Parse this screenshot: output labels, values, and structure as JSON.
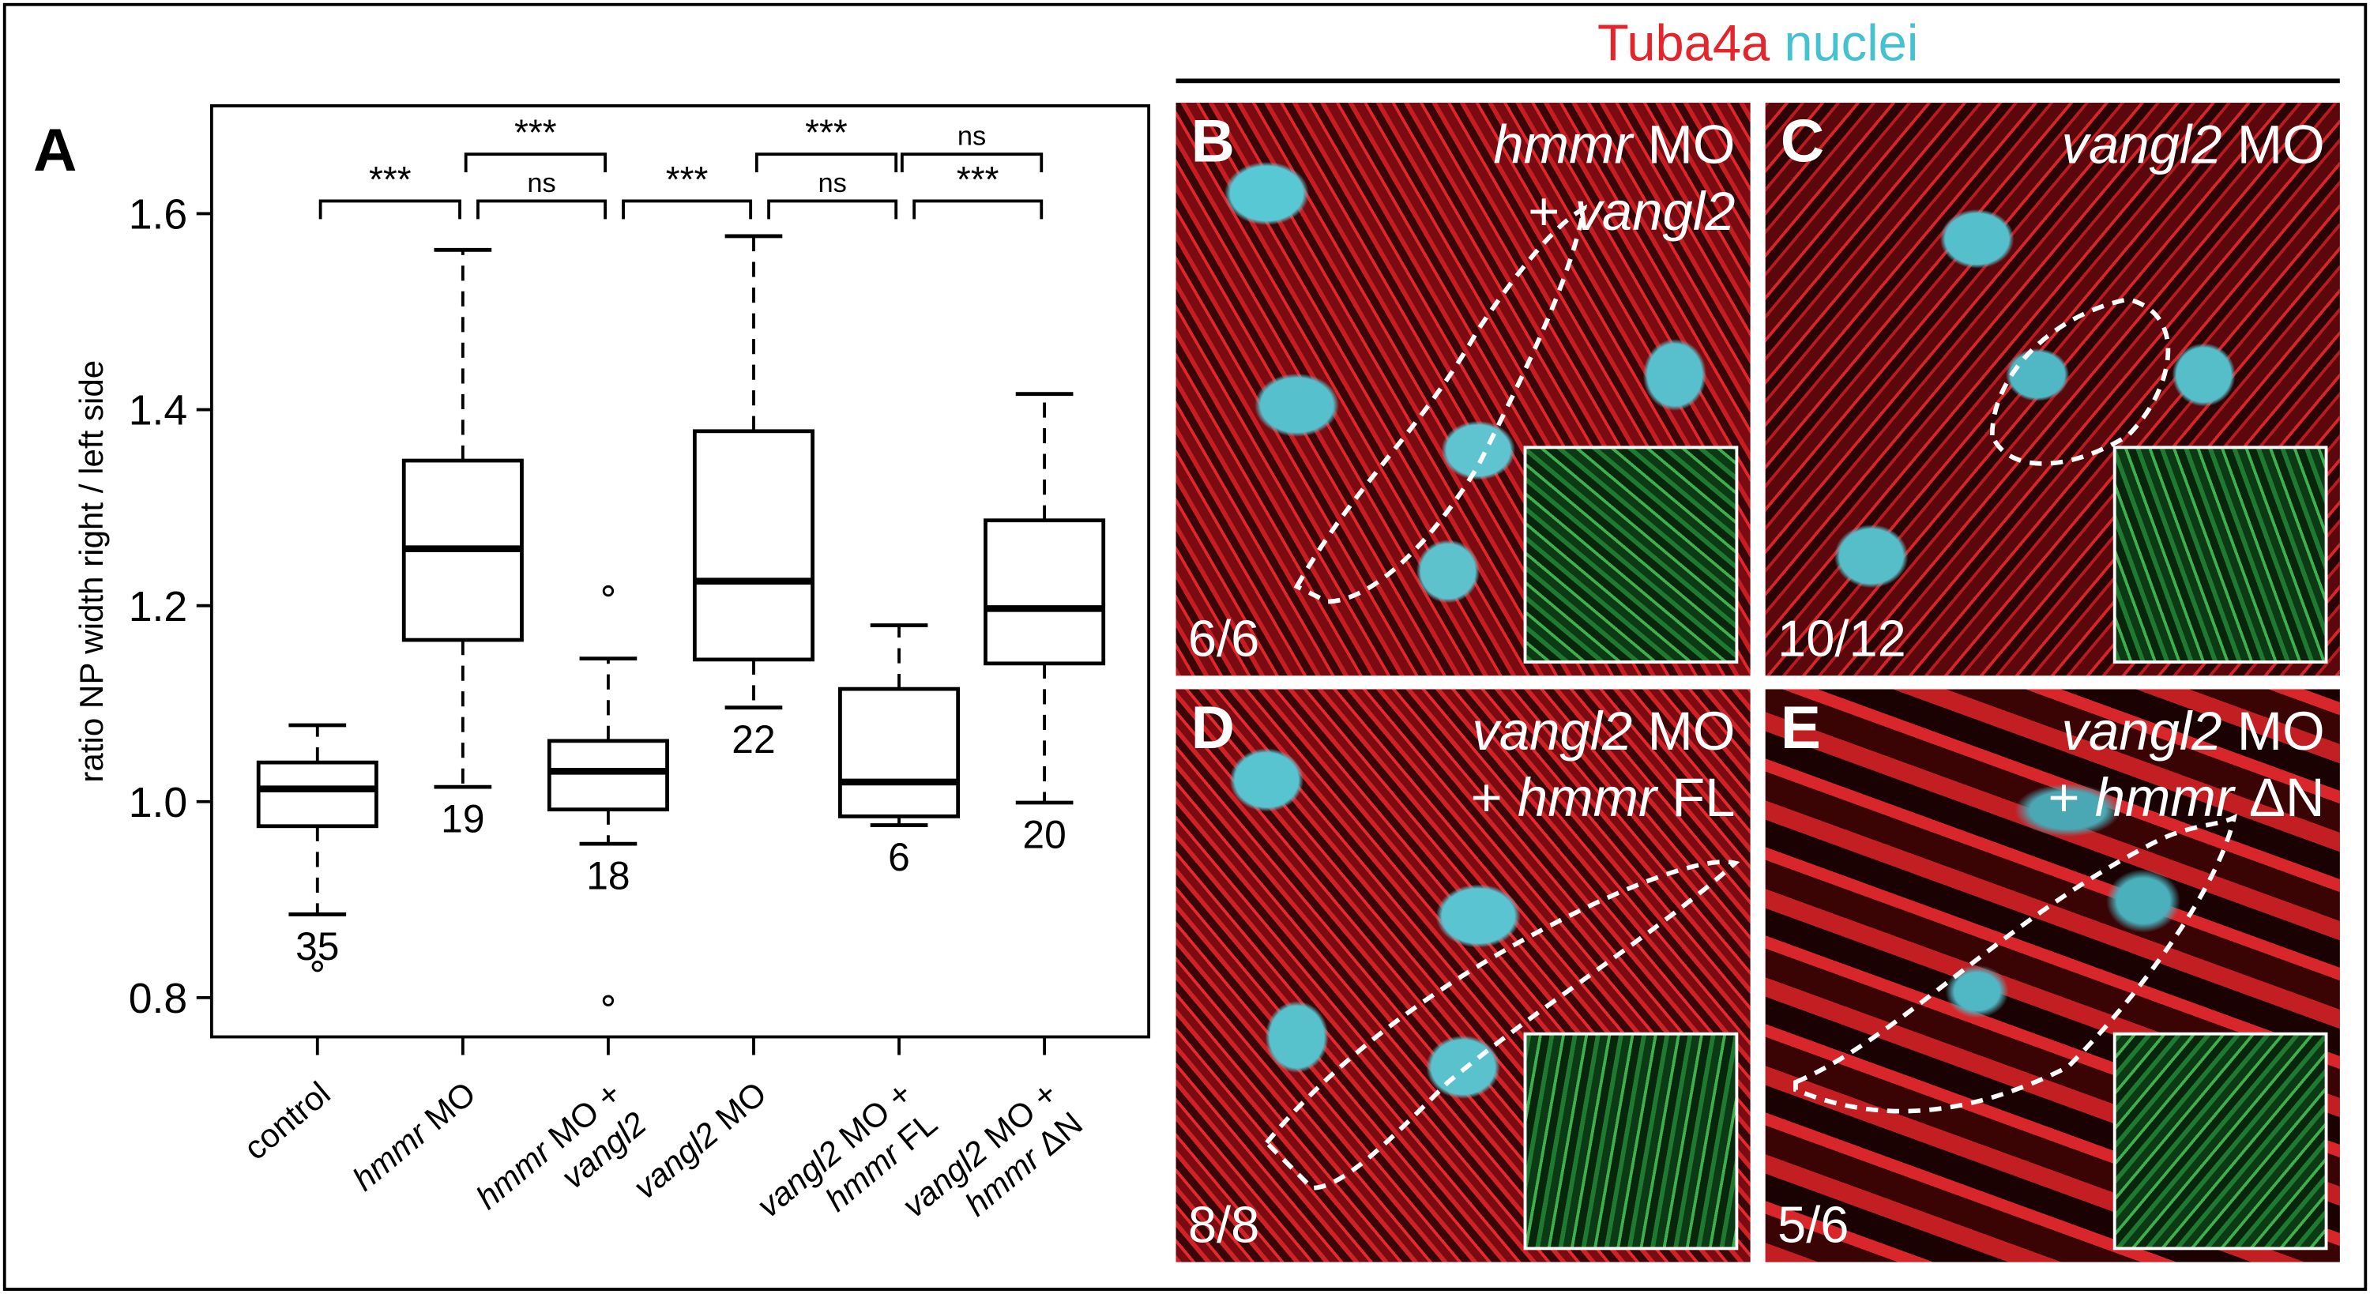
{
  "figure": {
    "panel_a_letter": "A",
    "header": {
      "tuba4a": "Tuba4a",
      "nuclei": "nuclei",
      "tuba4a_color": "#e3262b",
      "nuclei_color": "#45c1cf"
    }
  },
  "chart_data": {
    "type": "box",
    "ylabel": "ratio NP width right / left side",
    "ylim": [
      0.76,
      1.71
    ],
    "yticks": [
      0.8,
      1.0,
      1.2,
      1.4,
      1.6
    ],
    "ytick_labels": [
      "0.8",
      "1.0",
      "1.2",
      "1.4",
      "1.6"
    ],
    "grid": false,
    "categories": [
      {
        "lines": [
          [
            {
              "t": "control",
              "i": false
            }
          ]
        ]
      },
      {
        "lines": [
          [
            {
              "t": "hmmr",
              "i": true
            },
            {
              "t": " MO",
              "i": false
            }
          ]
        ]
      },
      {
        "lines": [
          [
            {
              "t": "hmmr",
              "i": true
            },
            {
              "t": " MO +",
              "i": false
            }
          ],
          [
            {
              "t": "vangl2",
              "i": true
            }
          ]
        ]
      },
      {
        "lines": [
          [
            {
              "t": "vangl2",
              "i": true
            },
            {
              "t": " MO",
              "i": false
            }
          ]
        ]
      },
      {
        "lines": [
          [
            {
              "t": "vangl2",
              "i": true
            },
            {
              "t": " MO +",
              "i": false
            }
          ],
          [
            {
              "t": "hmmr",
              "i": true
            },
            {
              "t": " FL",
              "i": false
            }
          ]
        ]
      },
      {
        "lines": [
          [
            {
              "t": "vangl2",
              "i": true
            },
            {
              "t": " MO +",
              "i": false
            }
          ],
          [
            {
              "t": "hmmr",
              "i": true
            },
            {
              "t": " ΔN",
              "i": false
            }
          ]
        ]
      }
    ],
    "boxes": [
      {
        "whisker_low": 0.885,
        "q1": 0.975,
        "median": 1.013,
        "q3": 1.04,
        "whisker_high": 1.078,
        "outliers": [
          0.832
        ],
        "n": "35"
      },
      {
        "whisker_low": 1.015,
        "q1": 1.165,
        "median": 1.258,
        "q3": 1.348,
        "whisker_high": 1.563,
        "outliers": [],
        "n": "19"
      },
      {
        "whisker_low": 0.957,
        "q1": 0.992,
        "median": 1.031,
        "q3": 1.062,
        "whisker_high": 1.146,
        "outliers": [
          1.215,
          0.797
        ],
        "n": "18"
      },
      {
        "whisker_low": 1.096,
        "q1": 1.145,
        "median": 1.225,
        "q3": 1.378,
        "whisker_high": 1.577,
        "outliers": [],
        "n": "22"
      },
      {
        "whisker_low": 0.976,
        "q1": 0.985,
        "median": 1.02,
        "q3": 1.115,
        "whisker_high": 1.18,
        "outliers": [],
        "n": "6"
      },
      {
        "whisker_low": 0.999,
        "q1": 1.141,
        "median": 1.197,
        "q3": 1.287,
        "whisker_high": 1.416,
        "outliers": [],
        "n": "20"
      }
    ],
    "significance": [
      {
        "from": 0,
        "to": 1,
        "row": 1,
        "label": "***"
      },
      {
        "from": 1,
        "to": 2,
        "row": 1,
        "label": "ns"
      },
      {
        "from": 2,
        "to": 3,
        "row": 1,
        "label": "***"
      },
      {
        "from": 3,
        "to": 4,
        "row": 1,
        "label": "ns"
      },
      {
        "from": 4,
        "to": 5,
        "row": 1,
        "label": "***"
      },
      {
        "from": 1,
        "to": 2,
        "row": 2,
        "label": "***"
      },
      {
        "from": 3,
        "to": 4,
        "row": 2,
        "label": "***"
      },
      {
        "from": 4,
        "to": 5,
        "row": 2,
        "label": "ns"
      }
    ]
  },
  "micrographs": [
    {
      "letter": "B",
      "title": [
        [
          {
            "t": "hmmr",
            "i": true
          },
          {
            "t": " MO",
            "i": false
          }
        ],
        [
          {
            "t": "+ ",
            "i": false
          },
          {
            "t": "vangl2",
            "i": true
          }
        ]
      ],
      "count": "6/6"
    },
    {
      "letter": "C",
      "title": [
        [
          {
            "t": "vangl2",
            "i": true
          },
          {
            "t": " MO",
            "i": false
          }
        ]
      ],
      "count": "10/12"
    },
    {
      "letter": "D",
      "title": [
        [
          {
            "t": "vangl2",
            "i": true
          },
          {
            "t": " MO",
            "i": false
          }
        ],
        [
          {
            "t": "+ ",
            "i": false
          },
          {
            "t": "hmmr",
            "i": true
          },
          {
            "t": " FL",
            "i": false
          }
        ]
      ],
      "count": "8/8"
    },
    {
      "letter": "E",
      "title": [
        [
          {
            "t": "vangl2",
            "i": true
          },
          {
            "t": " MO",
            "i": false
          }
        ],
        [
          {
            "t": "+ ",
            "i": false
          },
          {
            "t": "hmmr",
            "i": true
          },
          {
            "t": " ΔN",
            "i": false
          }
        ]
      ],
      "count": "5/6"
    }
  ]
}
